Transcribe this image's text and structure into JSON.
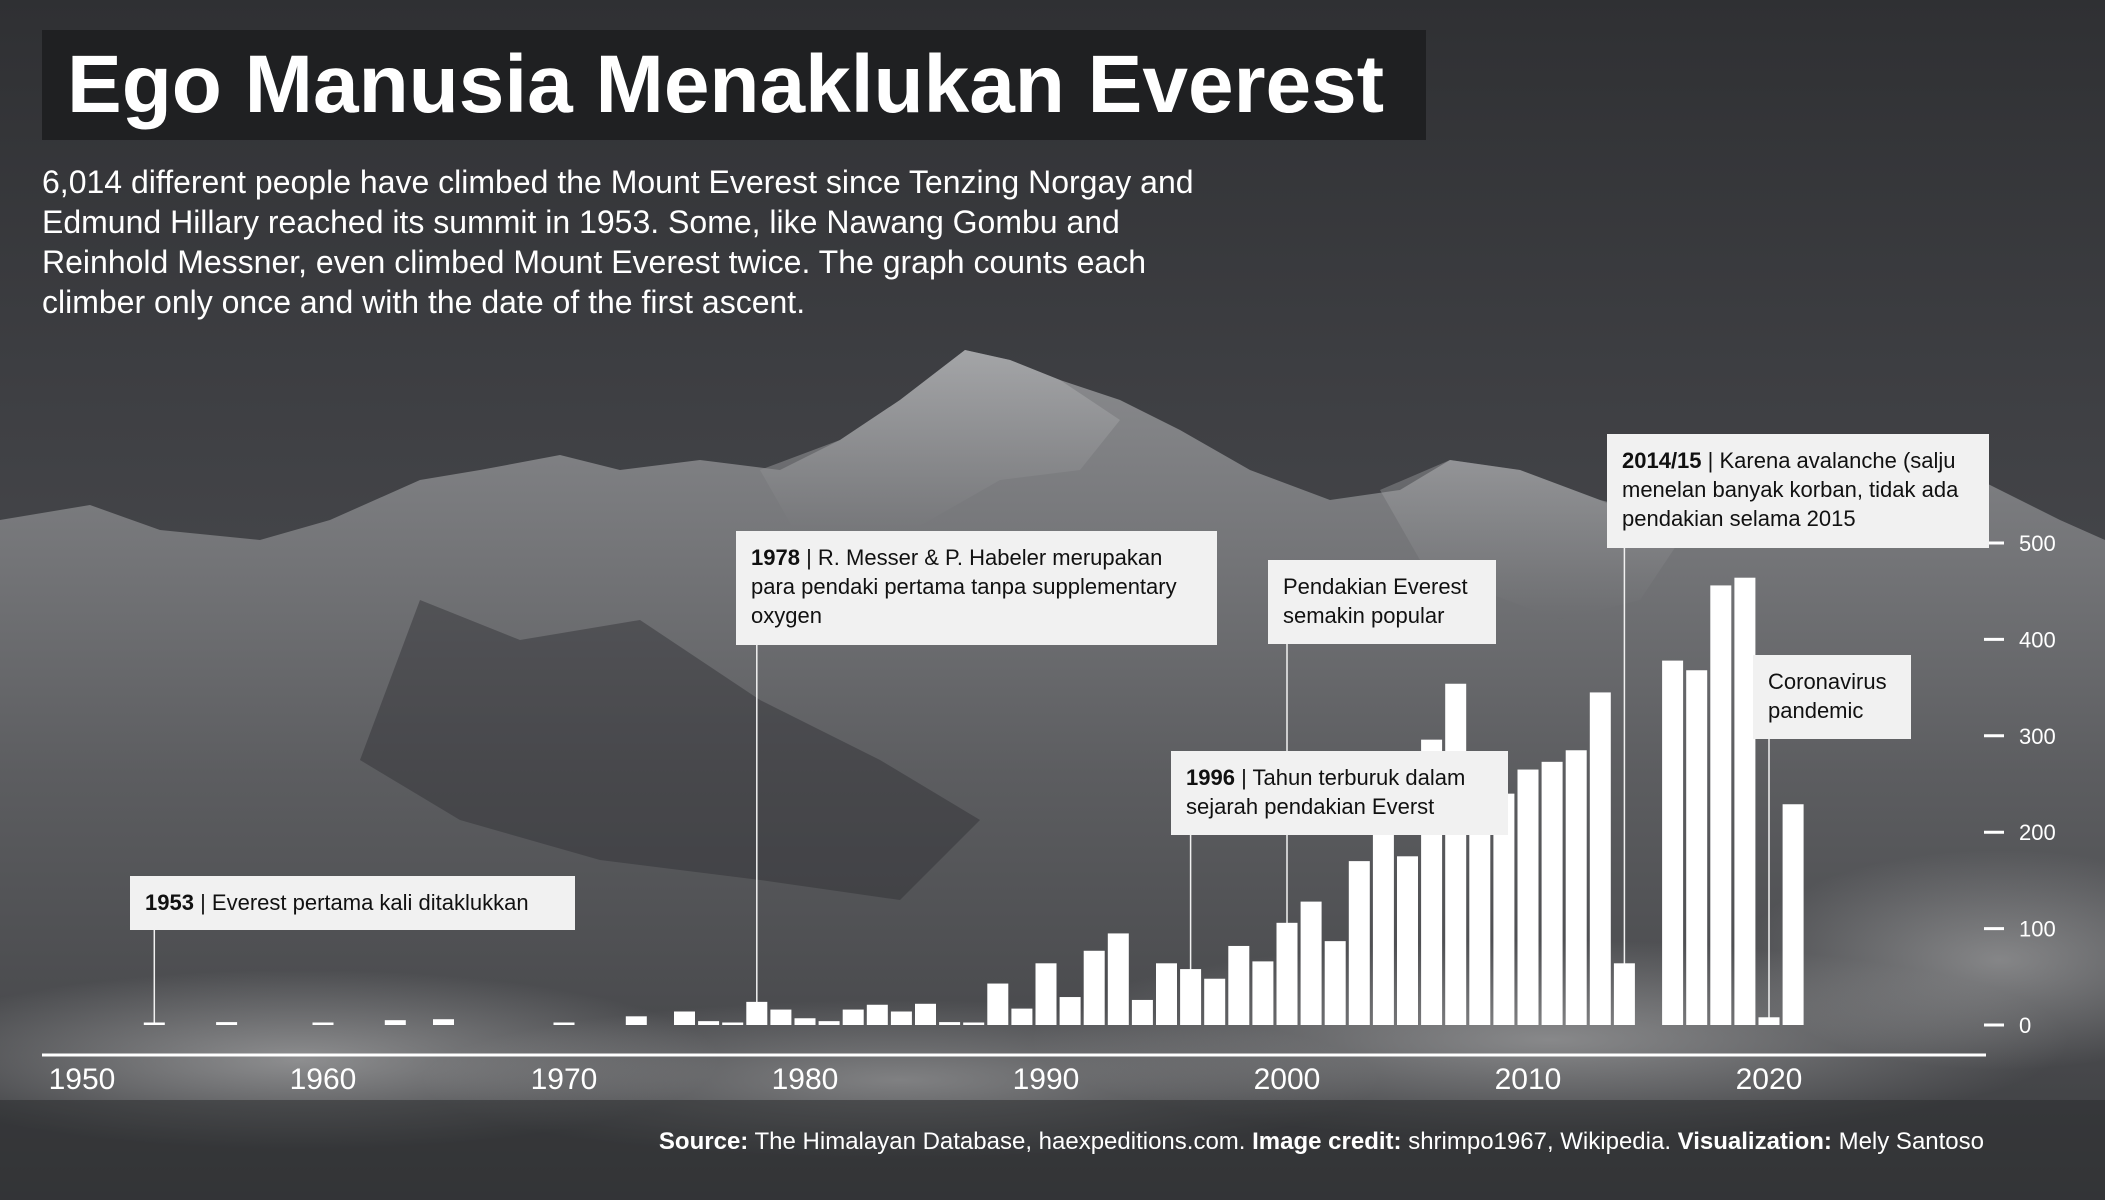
{
  "title": "Ego Manusia Menaklukan Everest",
  "subtitle": "6,014 different people have climbed the Mount Everest since Tenzing Norgay and Edmund Hillary reached its summit in 1953. Some, like Nawang Gombu and Reinhold Messner, even climbed Mount Everest twice. The graph counts each climber only once and with the date of the first ascent.",
  "annotations": {
    "a1953": {
      "year": "1953",
      "text": "Everest pertama kali ditaklukkan"
    },
    "a1978": {
      "year": "1978",
      "text": "R. Messer & P. Habeler merupakan para pendaki pertama tanpa supplementary oxygen"
    },
    "a1996": {
      "year": "1996",
      "text": "Tahun terburuk dalam sejarah pendakian Everst"
    },
    "a2000": {
      "text": "Pendakian Everest semakin popular"
    },
    "a2014": {
      "year": "2014/15",
      "text": "Karena avalanche (salju menelan banyak korban, tidak ada pendakian selama 2015"
    },
    "a2020": {
      "text": "Coronavirus pandemic"
    }
  },
  "source": {
    "source_label": "Source:",
    "source_text": "The Himalayan Database, haexpeditions.com.",
    "credit_label": "Image credit:",
    "credit_text": "shrimpo1967, Wikipedia.",
    "viz_label": "Visualization:",
    "viz_text": "Mely Santoso"
  },
  "colors": {
    "bars": "#ffffff",
    "annotation_bg": "#f1f1f1",
    "title_bg": "#1f2022",
    "background": "#3a3b3e"
  },
  "chart_data": {
    "type": "bar",
    "x": [
      1953,
      1956,
      1960,
      1963,
      1965,
      1970,
      1973,
      1975,
      1976,
      1977,
      1978,
      1979,
      1980,
      1981,
      1982,
      1983,
      1984,
      1985,
      1986,
      1987,
      1988,
      1989,
      1990,
      1991,
      1992,
      1993,
      1994,
      1995,
      1996,
      1997,
      1998,
      1999,
      2000,
      2001,
      2002,
      2003,
      2004,
      2005,
      2006,
      2007,
      2008,
      2009,
      2010,
      2011,
      2012,
      2013,
      2014,
      2016,
      2017,
      2018,
      2019,
      2020,
      2021
    ],
    "values": [
      2,
      3,
      2,
      5,
      6,
      2,
      9,
      14,
      4,
      2,
      24,
      16,
      7,
      4,
      16,
      21,
      14,
      22,
      3,
      2,
      43,
      17,
      64,
      29,
      77,
      95,
      26,
      64,
      58,
      48,
      82,
      66,
      106,
      128,
      87,
      170,
      210,
      175,
      296,
      354,
      220,
      240,
      265,
      273,
      285,
      345,
      64,
      378,
      368,
      456,
      464,
      8,
      229
    ],
    "xlim": [
      1949,
      2031
    ],
    "ylim": [
      0,
      500
    ],
    "x_ticks": [
      "1950",
      "1960",
      "1970",
      "1980",
      "1990",
      "2000",
      "2010",
      "2020"
    ],
    "y_ticks": [
      "0",
      "100",
      "200",
      "300",
      "400",
      "500"
    ],
    "grid": false,
    "xlabel": "",
    "ylabel": ""
  }
}
